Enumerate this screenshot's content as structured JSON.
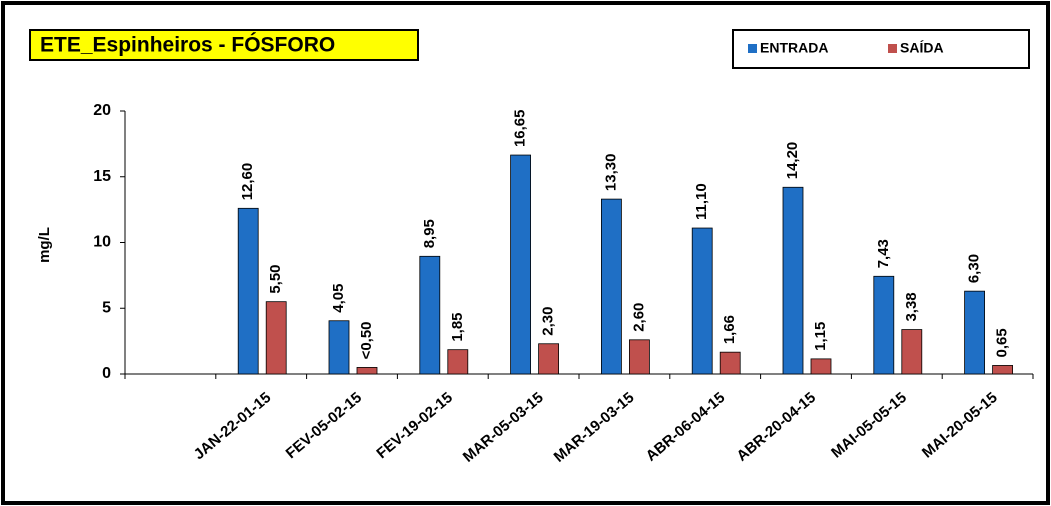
{
  "chart_data": {
    "type": "bar",
    "title": "ETE_Espinheiros - FÓSFORO",
    "y_label": "mg/L",
    "categories": [
      null,
      "JAN-22-01-15",
      "FEV-05-02-15",
      "FEV-19-02-15",
      "MAR-05-03-15",
      "MAR-19-03-15",
      "ABR-06-04-15",
      "ABR-20-04-15",
      "MAI-05-05-15",
      "MAI-20-05-15"
    ],
    "series": [
      {
        "name": "ENTRADA",
        "color": "#1f6fc5",
        "values": [
          null,
          12.6,
          4.05,
          8.95,
          16.65,
          13.3,
          11.1,
          14.2,
          7.43,
          6.3
        ],
        "value_labels": [
          null,
          "12,60",
          "4,05",
          "8,95",
          "16,65",
          "13,30",
          "11,10",
          "14,20",
          "7,43",
          "6,30"
        ]
      },
      {
        "name": "SAÍDA",
        "color": "#c0504d",
        "values": [
          null,
          5.5,
          0.5,
          1.85,
          2.3,
          2.6,
          1.66,
          1.15,
          3.38,
          0.65
        ],
        "value_labels": [
          null,
          "5,50",
          "<0,50",
          "1,85",
          "2,30",
          "2,60",
          "1,66",
          "1,15",
          "3,38",
          "0,65"
        ]
      }
    ],
    "ylim": [
      0,
      20
    ],
    "yticks": [
      0,
      5,
      10,
      15,
      20
    ],
    "legend": "top-right"
  }
}
